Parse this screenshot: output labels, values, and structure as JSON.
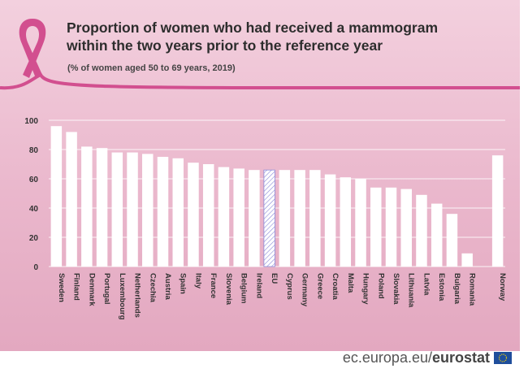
{
  "title_lines": [
    "Proportion of women who had received a mammogram",
    "within the two years prior to the reference year"
  ],
  "subtitle": "(% of women aged 50 to 69 years, 2019)",
  "footer": {
    "domain": "ec.europa.eu/",
    "brand": "eurostat"
  },
  "colors": {
    "ribbon": "#d24f8f",
    "bar": "#ffffff",
    "eu_bar_stroke": "#8a8ad8",
    "text": "#333333"
  },
  "chart_data": {
    "type": "bar",
    "title": "Proportion of women who had received a mammogram within the two years prior to the reference year",
    "subtitle": "(% of women aged 50 to 69 years, 2019)",
    "xlabel": "",
    "ylabel": "",
    "ylim": [
      0,
      100
    ],
    "yticks": [
      0,
      20,
      40,
      60,
      80,
      100
    ],
    "grid": true,
    "highlight": "EU",
    "categories": [
      "Sweden",
      "Finland",
      "Denmark",
      "Portugal",
      "Luxembourg",
      "Netherlands",
      "Czechia",
      "Austria",
      "Spain",
      "Italy",
      "France",
      "Slovenia",
      "Belgium",
      "Ireland",
      "EU",
      "Cyprus",
      "Germany",
      "Greece",
      "Croatia",
      "Malta",
      "Hungary",
      "Poland",
      "Slovakia",
      "Lithuania",
      "Latvia",
      "Estonia",
      "Bulgaria",
      "Romania",
      "Norway"
    ],
    "values": [
      96,
      92,
      82,
      81,
      78,
      78,
      77,
      75,
      74,
      71,
      70,
      68,
      67,
      66,
      66,
      66,
      66,
      66,
      63,
      61,
      60,
      54,
      54,
      53,
      49,
      43,
      36,
      9,
      76
    ],
    "gap_before": "Norway"
  }
}
